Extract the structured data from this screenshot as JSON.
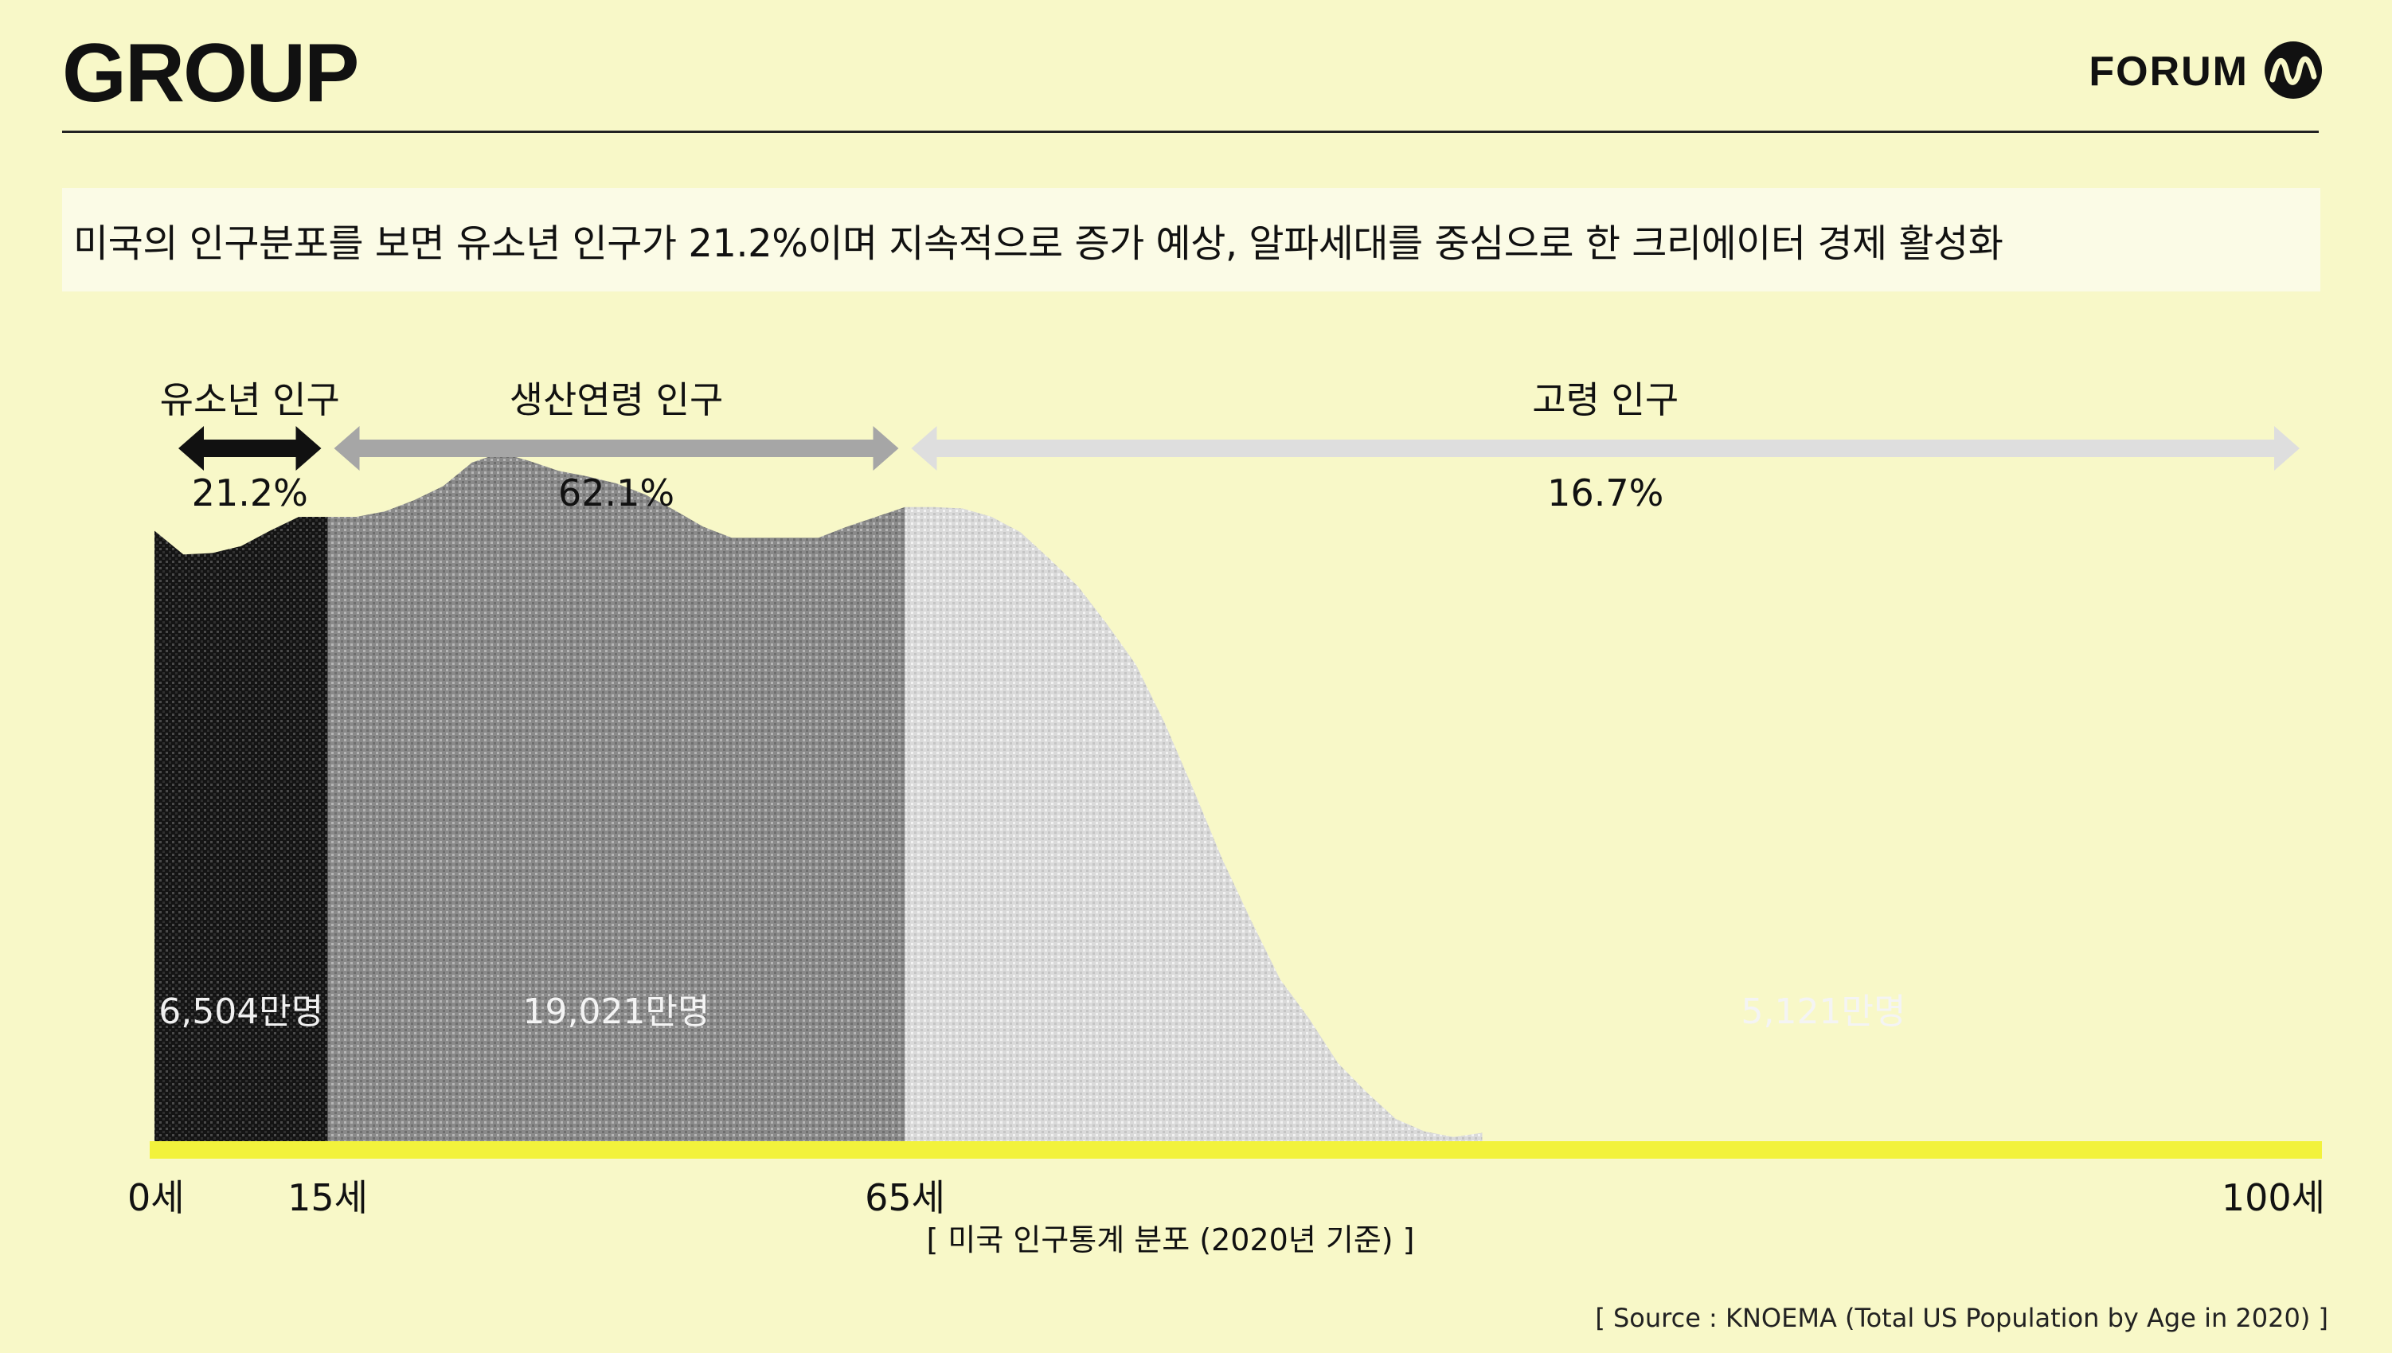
{
  "header": {
    "title": "GROUP",
    "logo_text": "FORUM",
    "logo_icon": "forum-m-icon"
  },
  "headline": "미국의 인구분포를 보면 유소년 인구가 21.2%이며 지속적으로 증가 예상, 알파세대를 중심으로 한 크리에이터 경제 활성화",
  "chart_data": {
    "type": "area",
    "title": "[ 미국 인구통계 분포 (2020년 기준) ]",
    "source": "[ Source : KNOEMA (Total US Population by Age in 2020)  ]",
    "x_ticks": [
      {
        "age": 0,
        "label": "0세"
      },
      {
        "age": 15,
        "label": "15세"
      },
      {
        "age": 65,
        "label": "65세"
      },
      {
        "age": 100,
        "label": "100세"
      }
    ],
    "groups": [
      {
        "name": "유소년 인구",
        "share": "21.2%",
        "total": "6,504만명",
        "from_age": 0,
        "to_age": 15,
        "color": "#111111",
        "text_color": "#f0f0f0",
        "arrow_color": "#111111"
      },
      {
        "name": "생산연령 인구",
        "share": "62.1%",
        "total": "19,021만명",
        "from_age": 15,
        "to_age": 65,
        "color": "#8c8c8c",
        "text_color": "#f4f4f4",
        "arrow_color": "#a6a6a6"
      },
      {
        "name": "고령 인구",
        "share": "16.7%",
        "total": "5,121만명",
        "from_age": 65,
        "to_age": 100,
        "color": "#dcdcdc",
        "text_color": "#f4f4f4",
        "arrow_color": "#dedede"
      }
    ],
    "profile": [
      [
        0,
        4.38
      ],
      [
        2.5,
        4.21
      ],
      [
        5,
        4.22
      ],
      [
        7.5,
        4.27
      ],
      [
        10,
        4.38
      ],
      [
        12.5,
        4.48
      ],
      [
        15,
        4.48
      ],
      [
        17.5,
        4.48
      ],
      [
        20,
        4.52
      ],
      [
        22.5,
        4.6
      ],
      [
        25,
        4.7
      ],
      [
        27.5,
        4.87
      ],
      [
        30,
        4.94
      ],
      [
        32.5,
        4.88
      ],
      [
        35,
        4.81
      ],
      [
        37.5,
        4.77
      ],
      [
        40,
        4.72
      ],
      [
        42.5,
        4.64
      ],
      [
        45,
        4.53
      ],
      [
        47.5,
        4.41
      ],
      [
        50,
        4.33
      ],
      [
        52.5,
        4.33
      ],
      [
        55,
        4.33
      ],
      [
        57.5,
        4.33
      ],
      [
        60,
        4.41
      ],
      [
        62.5,
        4.48
      ],
      [
        65,
        4.55
      ],
      [
        67.5,
        4.55
      ],
      [
        70,
        4.54
      ],
      [
        72.5,
        4.48
      ],
      [
        75,
        4.37
      ],
      [
        77.5,
        4.18
      ],
      [
        80,
        3.98
      ],
      [
        82.5,
        3.71
      ],
      [
        85,
        3.42
      ],
      [
        87.5,
        3.0
      ],
      [
        90,
        2.52
      ],
      [
        92.5,
        2.02
      ],
      [
        95,
        1.58
      ],
      [
        97.5,
        1.16
      ],
      [
        100,
        0.88
      ],
      [
        102.5,
        0.56
      ],
      [
        105,
        0.35
      ],
      [
        107.5,
        0.16
      ],
      [
        110,
        0.07
      ],
      [
        112.5,
        0.03
      ],
      [
        115,
        0.06
      ]
    ]
  }
}
